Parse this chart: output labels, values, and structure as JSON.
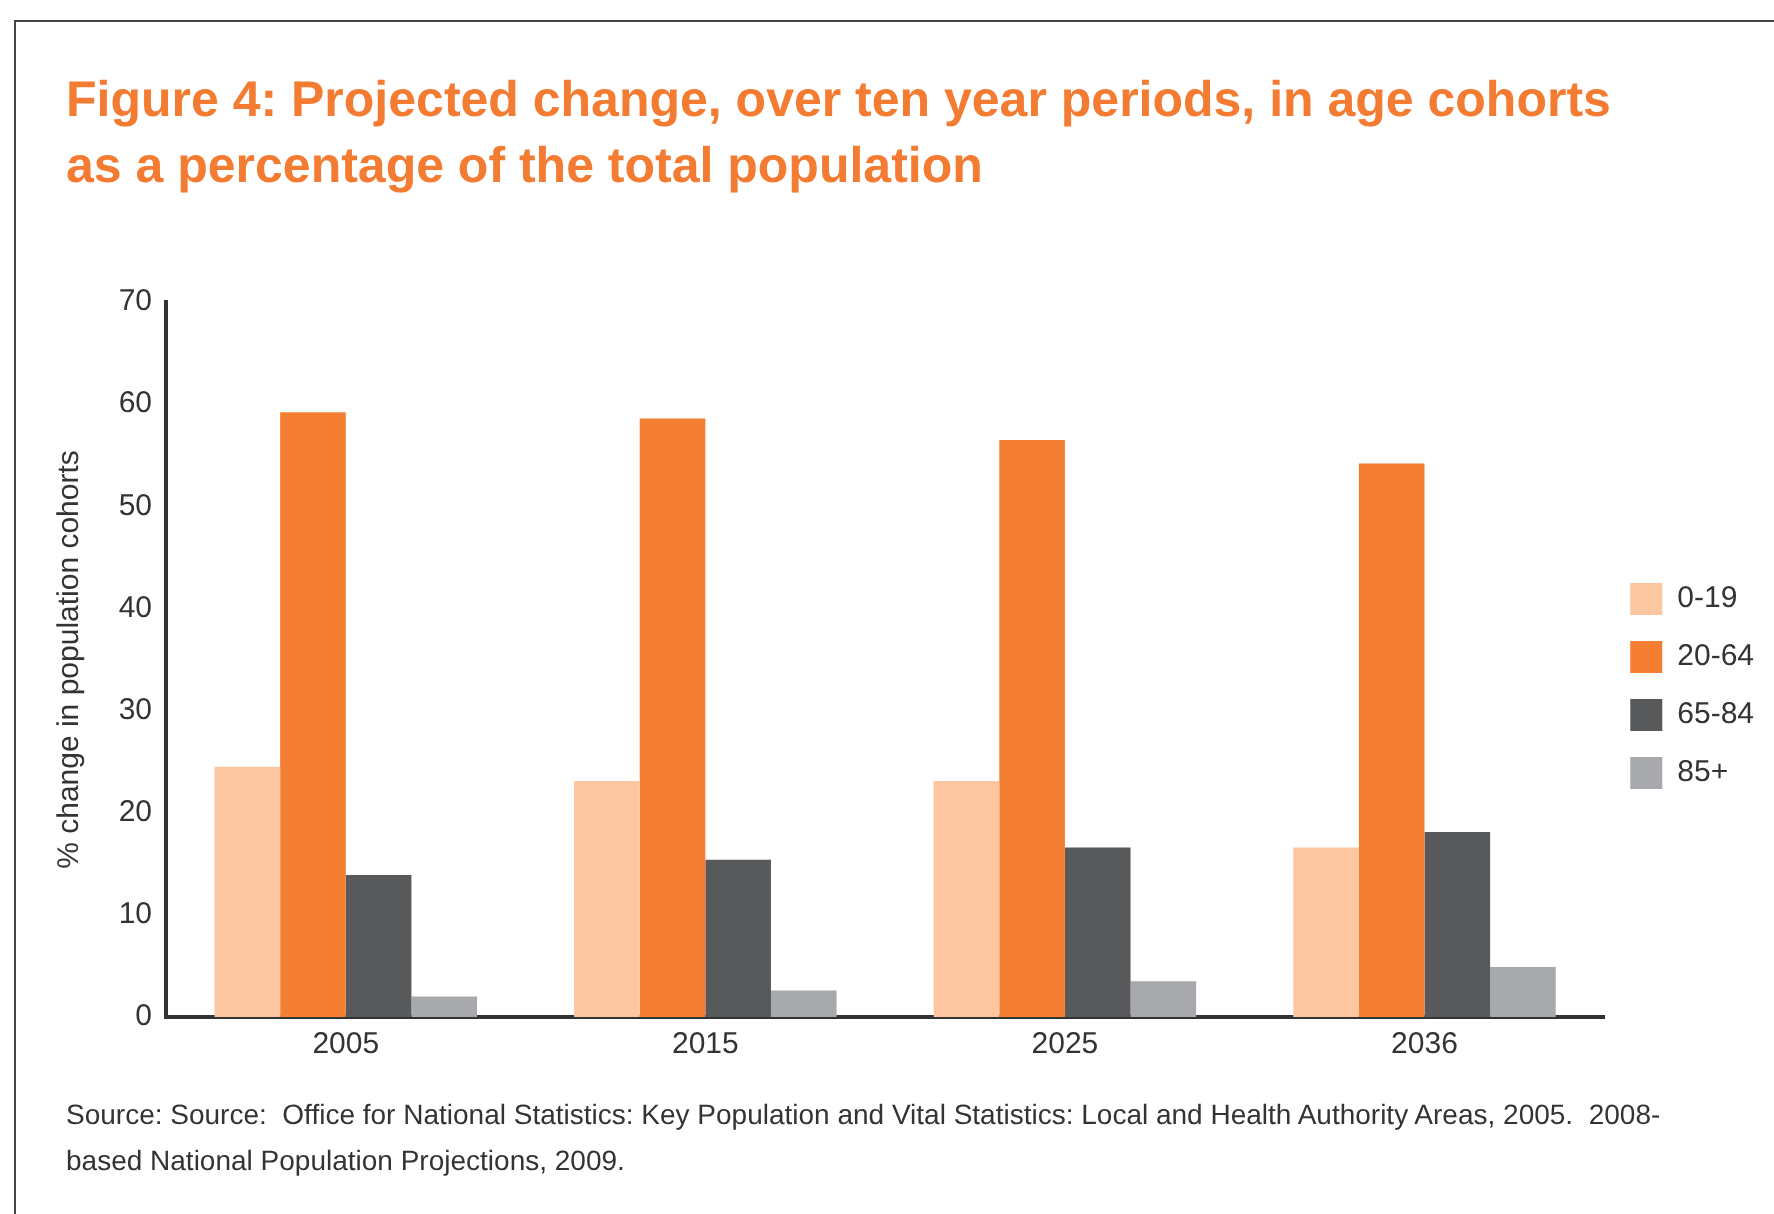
{
  "chart_data": {
    "type": "bar",
    "title": "Figure 4: Projected change, over ten year periods, in age cohorts as a percentage of the total population",
    "ylabel": "% change in population cohorts",
    "categories": [
      "2005",
      "2015",
      "2025",
      "2036"
    ],
    "series": [
      {
        "name": "0-19",
        "color": "#fbc6a0",
        "values": [
          24.5,
          23.1,
          23.1,
          16.6
        ]
      },
      {
        "name": "20-64",
        "color": "#f47f32",
        "values": [
          59.2,
          58.6,
          56.5,
          54.2
        ]
      },
      {
        "name": "65-84",
        "color": "#58595b",
        "values": [
          13.9,
          15.4,
          16.6,
          18.1
        ]
      },
      {
        "name": "85+",
        "color": "#a7a9ac",
        "values": [
          2.0,
          2.6,
          3.5,
          4.9
        ]
      }
    ],
    "ylim": [
      0,
      70
    ],
    "yticks": [
      0,
      10,
      20,
      30,
      40,
      50,
      60,
      70
    ],
    "grid": false,
    "legend": "right",
    "annotations": [
      "Source: Source:  Office for National Statistics: Key Population and Vital Statistics: Local and Health Authority Areas, 2005.  2008-based National Population Projections, 2009."
    ]
  }
}
